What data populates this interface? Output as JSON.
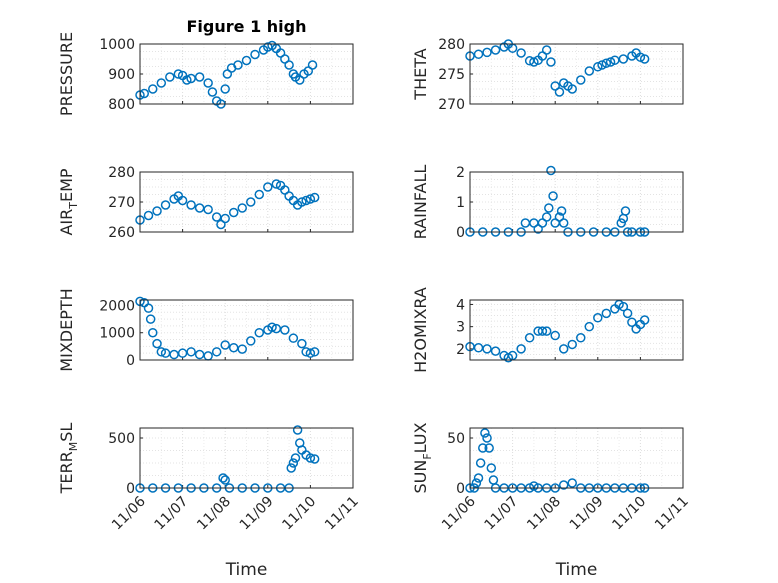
{
  "figure": {
    "title": "Figure 1 high",
    "marker_color": "#0072BD",
    "x_tick_labels": [
      "11/06",
      "11/07",
      "11/08",
      "11/09",
      "11/10",
      "11/11"
    ],
    "x_axis_label": "Time"
  },
  "chart_data": [
    {
      "type": "scatter",
      "name": "pressure",
      "title": "Figure 1 high",
      "ylabel": "PRESSURE",
      "ylabel_sub": "",
      "xlim": [
        0,
        5
      ],
      "ylim": [
        800,
        1000
      ],
      "yticks": [
        800,
        900,
        1000
      ],
      "grid": true,
      "x": [
        0.0,
        0.1,
        0.3,
        0.5,
        0.7,
        0.9,
        1.0,
        1.1,
        1.2,
        1.4,
        1.6,
        1.7,
        1.8,
        1.9,
        2.0,
        2.05,
        2.15,
        2.3,
        2.5,
        2.7,
        2.9,
        3.0,
        3.1,
        3.2,
        3.3,
        3.4,
        3.5,
        3.6,
        3.65,
        3.75,
        3.85,
        3.95,
        4.05
      ],
      "y": [
        830,
        835,
        850,
        870,
        890,
        900,
        895,
        880,
        885,
        890,
        870,
        840,
        810,
        800,
        850,
        900,
        920,
        930,
        945,
        965,
        980,
        990,
        995,
        985,
        970,
        950,
        930,
        900,
        890,
        880,
        900,
        910,
        930
      ]
    },
    {
      "type": "scatter",
      "name": "theta",
      "title": "",
      "ylabel": "THETA",
      "ylabel_sub": "",
      "xlim": [
        0,
        5
      ],
      "ylim": [
        270,
        280
      ],
      "yticks": [
        270,
        275,
        280
      ],
      "grid": true,
      "x": [
        0.0,
        0.2,
        0.4,
        0.6,
        0.8,
        0.9,
        1.0,
        1.2,
        1.4,
        1.5,
        1.6,
        1.7,
        1.8,
        1.9,
        2.0,
        2.1,
        2.2,
        2.3,
        2.4,
        2.6,
        2.8,
        3.0,
        3.1,
        3.2,
        3.3,
        3.4,
        3.6,
        3.8,
        3.9,
        4.0,
        4.1
      ],
      "y": [
        278,
        278.3,
        278.6,
        279,
        279.5,
        280,
        279.3,
        278.5,
        277.2,
        277,
        277.3,
        278,
        279,
        277,
        273,
        272,
        273.5,
        273,
        272.5,
        274,
        275.5,
        276.2,
        276.5,
        276.8,
        277,
        277.3,
        277.5,
        278,
        278.5,
        277.8,
        277.5
      ]
    },
    {
      "type": "scatter",
      "name": "air_temp",
      "title": "",
      "ylabel": "AIR",
      "ylabel_sub": "T",
      "ylabel_tail": "EMP",
      "xlim": [
        0,
        5
      ],
      "ylim": [
        260,
        280
      ],
      "yticks": [
        260,
        270,
        280
      ],
      "grid": true,
      "x": [
        0.0,
        0.2,
        0.4,
        0.6,
        0.8,
        0.9,
        1.0,
        1.2,
        1.4,
        1.6,
        1.8,
        1.9,
        2.0,
        2.2,
        2.4,
        2.6,
        2.8,
        3.0,
        3.2,
        3.3,
        3.4,
        3.5,
        3.6,
        3.7,
        3.8,
        3.9,
        4.0,
        4.1
      ],
      "y": [
        264,
        265.5,
        267,
        269,
        271,
        272,
        270.5,
        269,
        268,
        267.5,
        265,
        262.5,
        264.5,
        266.5,
        268,
        270,
        272.5,
        275,
        276,
        275.5,
        274,
        272,
        270.5,
        269,
        270,
        270.5,
        271,
        271.5
      ]
    },
    {
      "type": "scatter",
      "name": "rainfall",
      "title": "",
      "ylabel": "RAINFALL",
      "ylabel_sub": "",
      "xlim": [
        0,
        5
      ],
      "ylim": [
        0,
        2
      ],
      "yticks": [
        0,
        1,
        2
      ],
      "grid": true,
      "x": [
        0.0,
        0.3,
        0.6,
        0.9,
        1.2,
        1.3,
        1.5,
        1.6,
        1.7,
        1.8,
        1.85,
        1.9,
        1.95,
        2.0,
        2.1,
        2.15,
        2.2,
        2.3,
        2.6,
        2.9,
        3.2,
        3.4,
        3.55,
        3.6,
        3.65,
        3.7,
        3.8,
        4.0,
        4.1
      ],
      "y": [
        0,
        0,
        0,
        0,
        0,
        0.3,
        0.3,
        0.1,
        0.3,
        0.5,
        0.8,
        2.05,
        1.2,
        0.3,
        0.5,
        0.7,
        0.3,
        0,
        0,
        0,
        0,
        0,
        0.3,
        0.45,
        0.7,
        0,
        0,
        0,
        0
      ]
    },
    {
      "type": "scatter",
      "name": "mixdepth",
      "title": "",
      "ylabel": "MIXDEPTH",
      "ylabel_sub": "",
      "xlim": [
        0,
        5
      ],
      "ylim": [
        0,
        2200
      ],
      "yticks": [
        0,
        1000,
        2000
      ],
      "grid": true,
      "x": [
        0.0,
        0.1,
        0.2,
        0.25,
        0.3,
        0.4,
        0.5,
        0.6,
        0.8,
        1.0,
        1.2,
        1.4,
        1.6,
        1.8,
        2.0,
        2.2,
        2.4,
        2.6,
        2.8,
        3.0,
        3.1,
        3.2,
        3.4,
        3.6,
        3.8,
        3.9,
        4.0,
        4.1
      ],
      "y": [
        2150,
        2100,
        1900,
        1500,
        1000,
        600,
        300,
        250,
        200,
        250,
        300,
        200,
        150,
        300,
        550,
        450,
        400,
        700,
        1000,
        1100,
        1200,
        1150,
        1100,
        800,
        600,
        300,
        250,
        300
      ]
    },
    {
      "type": "scatter",
      "name": "h2omixra",
      "title": "",
      "ylabel": "H2OMIXRA",
      "ylabel_sub": "",
      "xlim": [
        0,
        5
      ],
      "ylim": [
        1.5,
        4.2
      ],
      "yticks": [
        2,
        3,
        4
      ],
      "grid": true,
      "x": [
        0.0,
        0.2,
        0.4,
        0.6,
        0.8,
        0.9,
        1.0,
        1.2,
        1.4,
        1.6,
        1.7,
        1.8,
        2.0,
        2.2,
        2.4,
        2.6,
        2.8,
        3.0,
        3.2,
        3.4,
        3.5,
        3.6,
        3.7,
        3.8,
        3.9,
        4.0,
        4.1
      ],
      "y": [
        2.1,
        2.05,
        2.0,
        1.9,
        1.7,
        1.6,
        1.7,
        2.0,
        2.5,
        2.8,
        2.8,
        2.8,
        2.6,
        2.0,
        2.2,
        2.5,
        3.0,
        3.4,
        3.6,
        3.8,
        4.0,
        3.9,
        3.6,
        3.2,
        2.9,
        3.1,
        3.3
      ]
    },
    {
      "type": "scatter",
      "name": "terr_msl",
      "title": "",
      "ylabel": "TERR",
      "ylabel_sub": "M",
      "ylabel_tail": "SL",
      "xlim": [
        0,
        5
      ],
      "ylim": [
        0,
        600
      ],
      "yticks": [
        0,
        500
      ],
      "grid": true,
      "x": [
        0.0,
        0.3,
        0.6,
        0.9,
        1.2,
        1.5,
        1.8,
        1.95,
        2.0,
        2.1,
        2.4,
        2.7,
        3.0,
        3.3,
        3.5,
        3.55,
        3.6,
        3.65,
        3.7,
        3.75,
        3.8,
        3.9,
        4.0,
        4.1
      ],
      "y": [
        0,
        0,
        0,
        0,
        0,
        0,
        0,
        100,
        80,
        0,
        0,
        0,
        0,
        0,
        0,
        200,
        250,
        300,
        580,
        450,
        380,
        330,
        300,
        290
      ]
    },
    {
      "type": "scatter",
      "name": "sun_flux",
      "title": "",
      "ylabel": "SUN",
      "ylabel_sub": "F",
      "ylabel_tail": "LUX",
      "xlim": [
        0,
        5
      ],
      "ylim": [
        0,
        60
      ],
      "yticks": [
        0,
        50
      ],
      "grid": true,
      "x": [
        0.0,
        0.1,
        0.15,
        0.2,
        0.25,
        0.3,
        0.35,
        0.4,
        0.45,
        0.5,
        0.55,
        0.6,
        0.8,
        1.0,
        1.2,
        1.4,
        1.5,
        1.6,
        1.8,
        2.0,
        2.2,
        2.4,
        2.6,
        2.8,
        3.0,
        3.2,
        3.4,
        3.6,
        3.8,
        4.0,
        4.1
      ],
      "y": [
        0,
        0,
        5,
        10,
        25,
        40,
        55,
        50,
        40,
        20,
        8,
        0,
        0,
        0,
        0,
        0,
        2,
        0,
        0,
        0,
        3,
        5,
        0,
        0,
        0,
        0,
        0,
        0,
        0,
        0,
        0
      ]
    }
  ]
}
